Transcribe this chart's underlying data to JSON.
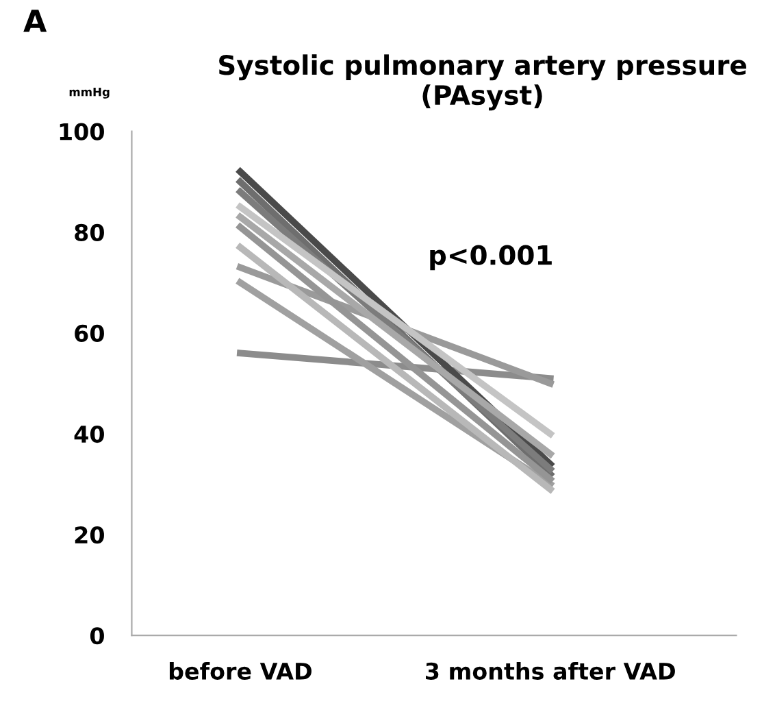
{
  "chart_data": {
    "type": "line",
    "title": "Systolic pulmonary artery pressure\n(PAsyst)",
    "ylabel": "mmHg",
    "categories": [
      "before VAD",
      "3 months after VAD"
    ],
    "series": [
      {
        "color": "#8c8c8c",
        "values": [
          56,
          51
        ]
      },
      {
        "color": "#9a9a9a",
        "values": [
          73,
          50
        ]
      },
      {
        "color": "#a0a0a0",
        "values": [
          70,
          30
        ]
      },
      {
        "color": "#b8b8b8",
        "values": [
          77,
          29
        ]
      },
      {
        "color": "#4a4a4a",
        "values": [
          92,
          34
        ]
      },
      {
        "color": "#6e6e6e",
        "values": [
          90,
          32
        ]
      },
      {
        "color": "#7c7c7c",
        "values": [
          88,
          33
        ]
      },
      {
        "color": "#c4c4c4",
        "values": [
          85,
          40
        ]
      },
      {
        "color": "#a8a8a8",
        "values": [
          83,
          36
        ]
      },
      {
        "color": "#959595",
        "values": [
          81,
          31
        ]
      }
    ],
    "ylim": [
      0,
      100
    ],
    "yticks": [
      0,
      20,
      40,
      60,
      80,
      100
    ],
    "grid": false,
    "legend": false,
    "marker": "none",
    "line_style": "solid",
    "annotations": [
      "A",
      "p<0.001"
    ]
  }
}
